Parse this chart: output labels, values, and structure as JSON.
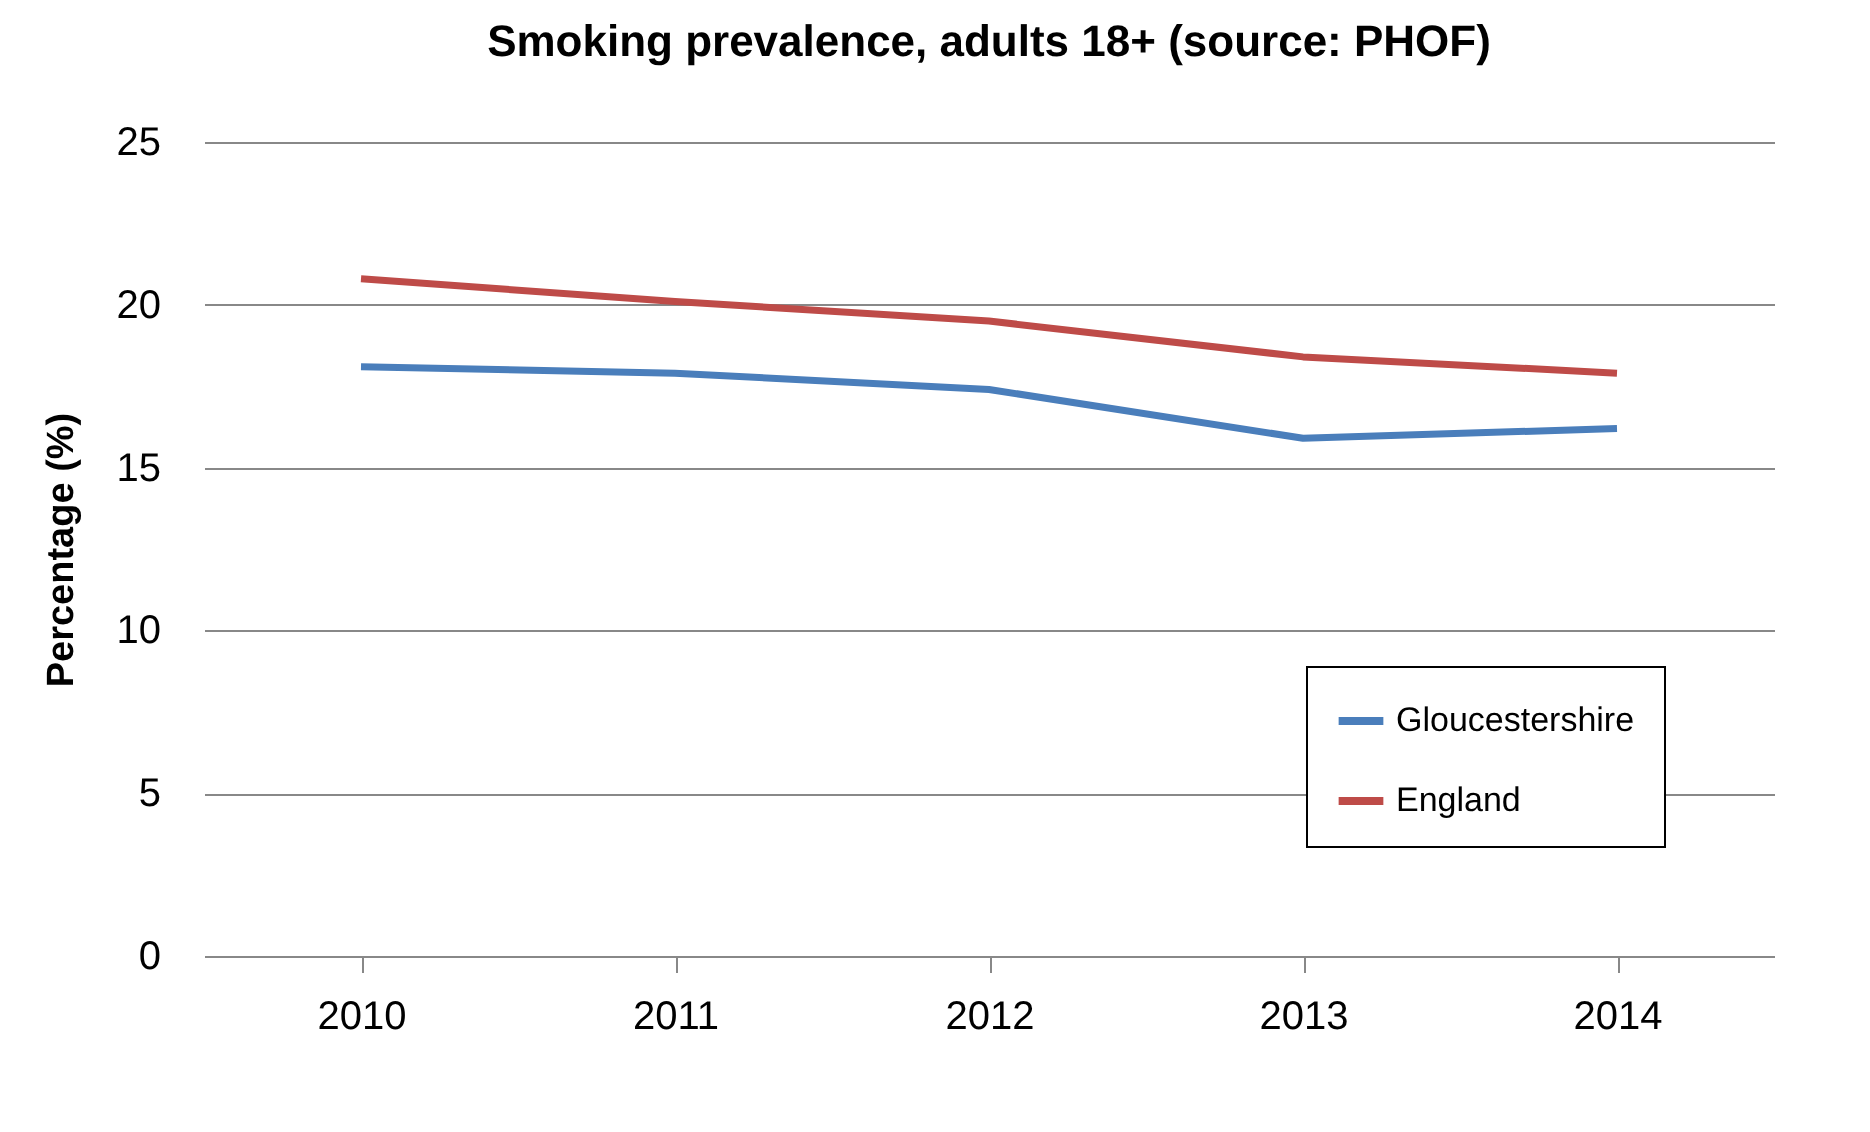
{
  "chart_data": {
    "type": "line",
    "title": "Smoking prevalence, adults 18+ (source: PHOF)",
    "ylabel": "Percentage (%)",
    "categories": [
      "2010",
      "2011",
      "2012",
      "2013",
      "2014"
    ],
    "series": [
      {
        "name": "Gloucestershire",
        "color": "#4a7ebb",
        "values": [
          18.1,
          17.9,
          17.4,
          15.9,
          16.2
        ]
      },
      {
        "name": "England",
        "color": "#be4b48",
        "values": [
          20.8,
          20.1,
          19.5,
          18.4,
          17.9
        ]
      }
    ],
    "ylim": [
      0,
      25
    ],
    "yticks": [
      0,
      5,
      10,
      15,
      20,
      25
    ],
    "grid": "y",
    "legend": "bottom right",
    "marker": "none",
    "line_style": "solid"
  }
}
